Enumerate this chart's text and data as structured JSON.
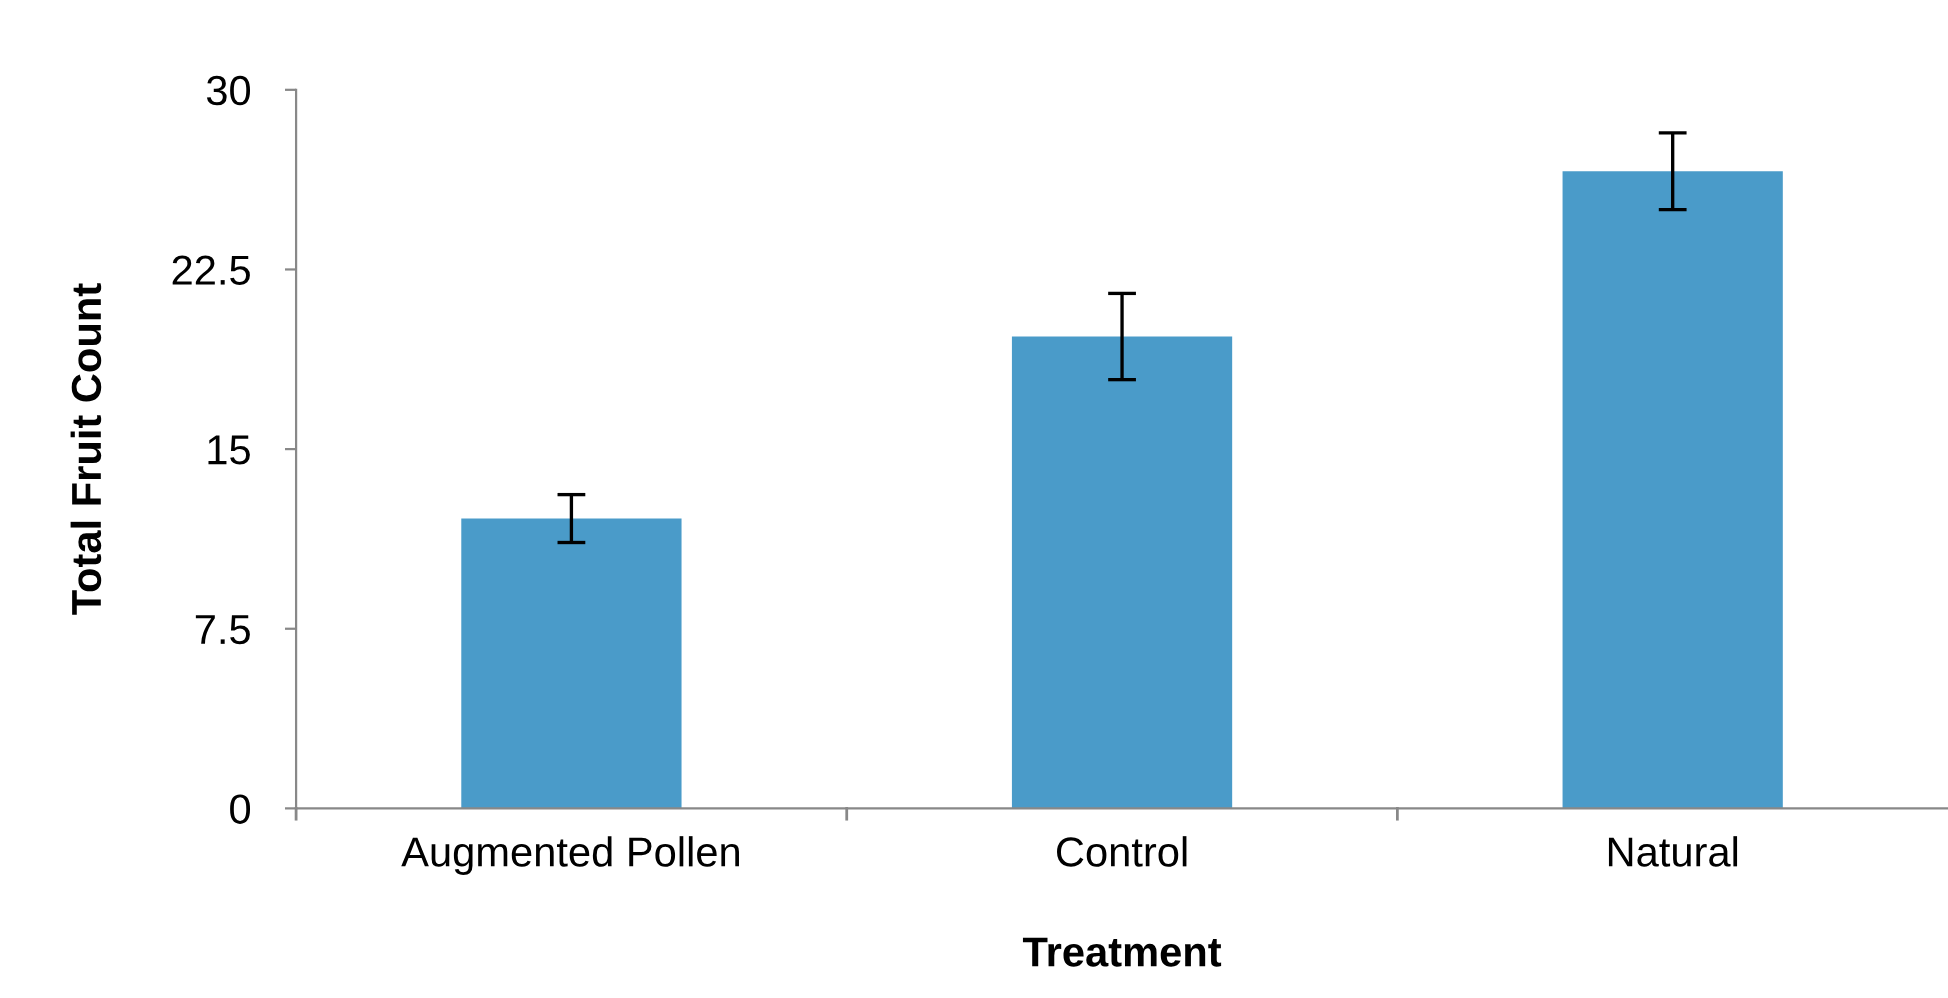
{
  "chart_data": {
    "type": "bar",
    "xlabel": "Treatment",
    "ylabel": "Total Fruit Count",
    "categories": [
      "Augmented Pollen",
      "Control",
      "Natural"
    ],
    "values": [
      12.1,
      19.7,
      26.6
    ],
    "errors": [
      1.0,
      1.8,
      1.6
    ],
    "color": "#4a9bc9",
    "ylim": [
      0,
      30
    ],
    "yticks": [
      0,
      7.5,
      15,
      22.5,
      30
    ],
    "grid": false
  }
}
